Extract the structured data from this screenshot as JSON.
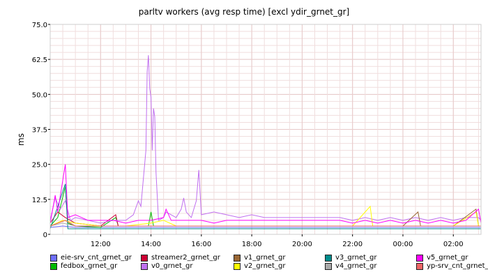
{
  "chart_data": {
    "type": "line",
    "title": "parltv workers (avg resp time) [excl ydir_grnet_gr]",
    "ylabel": "ms",
    "xlabel": "",
    "ylim": [
      0,
      75
    ],
    "yticks": [
      "0",
      "12.5",
      "25.0",
      "37.5",
      "50.0",
      "62.5",
      "75.0"
    ],
    "xticks": [
      "12:00",
      "14:00",
      "16:00",
      "18:00",
      "20:00",
      "22:00",
      "00:00",
      "02:00"
    ],
    "x_range_hours": [
      10.0,
      27.1
    ],
    "grid": true,
    "legend_position": "bottom",
    "series": [
      {
        "name": "eie-srv_cnt_grnet_gr",
        "color": "#6e6eff",
        "points": [
          [
            10.0,
            2.5
          ],
          [
            10.5,
            3
          ],
          [
            11.0,
            2.5
          ],
          [
            12.0,
            2.5
          ],
          [
            13.0,
            2.5
          ],
          [
            14.0,
            2.5
          ],
          [
            15.0,
            2.5
          ],
          [
            16.0,
            2.5
          ],
          [
            17.0,
            2.5
          ],
          [
            18.0,
            2.5
          ],
          [
            19.0,
            2.5
          ],
          [
            20.0,
            2.5
          ],
          [
            21.0,
            2.5
          ],
          [
            22.0,
            2.5
          ],
          [
            23.0,
            2.5
          ],
          [
            24.0,
            2.5
          ],
          [
            25.0,
            2.5
          ],
          [
            26.0,
            2.5
          ],
          [
            27.1,
            2.5
          ]
        ]
      },
      {
        "name": "fedbox_grnet_gr",
        "color": "#00bb00",
        "points": [
          [
            10.0,
            3
          ],
          [
            10.3,
            6
          ],
          [
            10.6,
            17
          ],
          [
            10.7,
            4
          ],
          [
            11.0,
            3
          ],
          [
            12.0,
            2.5
          ],
          [
            12.6,
            6
          ],
          [
            12.7,
            3
          ],
          [
            13.9,
            3
          ],
          [
            14.0,
            8
          ],
          [
            14.1,
            3
          ],
          [
            15.0,
            3
          ],
          [
            16.0,
            3
          ],
          [
            17.0,
            3
          ],
          [
            18.0,
            3
          ],
          [
            19.0,
            3
          ],
          [
            20.0,
            3
          ],
          [
            21.0,
            3
          ],
          [
            22.0,
            3
          ],
          [
            23.0,
            3
          ],
          [
            24.0,
            3
          ],
          [
            25.0,
            3
          ],
          [
            26.0,
            3
          ],
          [
            27.1,
            3
          ]
        ]
      },
      {
        "name": "streamer2_grnet_gr",
        "color": "#cc0033",
        "points": [
          [
            10.0,
            4
          ],
          [
            10.3,
            8
          ],
          [
            10.6,
            6
          ],
          [
            11.0,
            4
          ],
          [
            12.0,
            3
          ],
          [
            12.6,
            7
          ],
          [
            12.7,
            3
          ],
          [
            14.0,
            3
          ],
          [
            15.0,
            3
          ],
          [
            16.0,
            3
          ],
          [
            17.0,
            3
          ],
          [
            18.0,
            3
          ],
          [
            19.0,
            3
          ],
          [
            20.0,
            3
          ],
          [
            21.0,
            3
          ],
          [
            22.0,
            3
          ],
          [
            23.0,
            3
          ],
          [
            24.0,
            3
          ],
          [
            25.0,
            3
          ],
          [
            26.0,
            3
          ],
          [
            27.1,
            3
          ]
        ]
      },
      {
        "name": "v0_grnet_gr",
        "color": "#c070f0",
        "points": [
          [
            10.0,
            5
          ],
          [
            10.2,
            13
          ],
          [
            10.4,
            9
          ],
          [
            10.6,
            12
          ],
          [
            10.8,
            5
          ],
          [
            11.0,
            6
          ],
          [
            11.5,
            5
          ],
          [
            12.0,
            4
          ],
          [
            12.5,
            5
          ],
          [
            13.0,
            5
          ],
          [
            13.3,
            7
          ],
          [
            13.5,
            12
          ],
          [
            13.6,
            10
          ],
          [
            13.8,
            30
          ],
          [
            13.85,
            58
          ],
          [
            13.9,
            64
          ],
          [
            13.95,
            52
          ],
          [
            14.0,
            49
          ],
          [
            14.05,
            30
          ],
          [
            14.1,
            45
          ],
          [
            14.15,
            42
          ],
          [
            14.2,
            22
          ],
          [
            14.3,
            5
          ],
          [
            14.5,
            6
          ],
          [
            14.6,
            8
          ],
          [
            14.8,
            7
          ],
          [
            15.0,
            6
          ],
          [
            15.2,
            9
          ],
          [
            15.3,
            13
          ],
          [
            15.4,
            8
          ],
          [
            15.6,
            6
          ],
          [
            15.8,
            12
          ],
          [
            15.9,
            23
          ],
          [
            16.0,
            7
          ],
          [
            16.5,
            8
          ],
          [
            17.0,
            7
          ],
          [
            17.5,
            6
          ],
          [
            18.0,
            7
          ],
          [
            18.5,
            6
          ],
          [
            19.0,
            6
          ],
          [
            19.5,
            6
          ],
          [
            20.0,
            6
          ],
          [
            20.5,
            6
          ],
          [
            21.0,
            6
          ],
          [
            21.5,
            6
          ],
          [
            22.0,
            5
          ],
          [
            22.5,
            6
          ],
          [
            23.0,
            5
          ],
          [
            23.5,
            6
          ],
          [
            24.0,
            5
          ],
          [
            24.5,
            6
          ],
          [
            25.0,
            5
          ],
          [
            25.5,
            6
          ],
          [
            26.0,
            5
          ],
          [
            26.5,
            6
          ],
          [
            27.0,
            6
          ],
          [
            27.1,
            5
          ]
        ]
      },
      {
        "name": "v1_grnet_gr",
        "color": "#996633",
        "points": [
          [
            10.0,
            3
          ],
          [
            10.6,
            5
          ],
          [
            11.0,
            3
          ],
          [
            12.0,
            3
          ],
          [
            13.0,
            3
          ],
          [
            14.0,
            3
          ],
          [
            15.0,
            3
          ],
          [
            16.0,
            3
          ],
          [
            17.0,
            3
          ],
          [
            18.0,
            3
          ],
          [
            19.0,
            3
          ],
          [
            20.0,
            3
          ],
          [
            21.0,
            3
          ],
          [
            22.0,
            3
          ],
          [
            23.0,
            3
          ],
          [
            24.0,
            3
          ],
          [
            24.6,
            8
          ],
          [
            24.7,
            3
          ],
          [
            25.0,
            3
          ],
          [
            26.0,
            3
          ],
          [
            26.9,
            9
          ],
          [
            27.0,
            3
          ],
          [
            27.1,
            3
          ]
        ]
      },
      {
        "name": "v2_grnet_gr",
        "color": "#ffff00",
        "points": [
          [
            10.0,
            3
          ],
          [
            10.5,
            5
          ],
          [
            11.0,
            4
          ],
          [
            12.0,
            3
          ],
          [
            13.0,
            3
          ],
          [
            14.0,
            4
          ],
          [
            14.5,
            5
          ],
          [
            15.0,
            3
          ],
          [
            16.0,
            3
          ],
          [
            17.0,
            3
          ],
          [
            18.0,
            3
          ],
          [
            19.0,
            3
          ],
          [
            20.0,
            3
          ],
          [
            21.0,
            3
          ],
          [
            22.0,
            3
          ],
          [
            22.7,
            10
          ],
          [
            22.8,
            3
          ],
          [
            23.0,
            3
          ],
          [
            24.0,
            3
          ],
          [
            25.0,
            3
          ],
          [
            26.0,
            3
          ],
          [
            26.9,
            8
          ],
          [
            27.0,
            3
          ],
          [
            27.1,
            3
          ]
        ]
      },
      {
        "name": "v3_grnet_gr",
        "color": "#008b8b",
        "points": [
          [
            10.0,
            2
          ],
          [
            10.6,
            18
          ],
          [
            10.7,
            2
          ],
          [
            11.0,
            2
          ],
          [
            12.0,
            2
          ],
          [
            13.0,
            2
          ],
          [
            14.0,
            2
          ],
          [
            15.0,
            2
          ],
          [
            16.0,
            2
          ],
          [
            17.0,
            2
          ],
          [
            18.0,
            2
          ],
          [
            19.0,
            2
          ],
          [
            20.0,
            2
          ],
          [
            21.0,
            2
          ],
          [
            22.0,
            2
          ],
          [
            23.0,
            2
          ],
          [
            24.0,
            2
          ],
          [
            25.0,
            2
          ],
          [
            26.0,
            2
          ],
          [
            27.1,
            2
          ]
        ]
      },
      {
        "name": "v4_grnet_gr",
        "color": "#aaaaaa",
        "points": [
          [
            10.0,
            3
          ],
          [
            10.5,
            4
          ],
          [
            11.0,
            3
          ],
          [
            12.0,
            3
          ],
          [
            13.0,
            3
          ],
          [
            14.0,
            3
          ],
          [
            15.0,
            3
          ],
          [
            16.0,
            3
          ],
          [
            17.0,
            3
          ],
          [
            18.0,
            3
          ],
          [
            19.0,
            3
          ],
          [
            20.0,
            3
          ],
          [
            21.0,
            3
          ],
          [
            22.0,
            3
          ],
          [
            23.0,
            3
          ],
          [
            24.0,
            3
          ],
          [
            25.0,
            3
          ],
          [
            26.0,
            3
          ],
          [
            27.1,
            3
          ]
        ]
      },
      {
        "name": "v5_grnet_gr",
        "color": "#ff00ff",
        "points": [
          [
            10.0,
            4
          ],
          [
            10.2,
            14
          ],
          [
            10.3,
            8
          ],
          [
            10.6,
            25
          ],
          [
            10.7,
            6
          ],
          [
            11.0,
            7
          ],
          [
            11.5,
            5
          ],
          [
            12.0,
            5
          ],
          [
            12.5,
            5
          ],
          [
            13.0,
            4
          ],
          [
            13.5,
            5
          ],
          [
            14.0,
            5
          ],
          [
            14.5,
            6
          ],
          [
            14.6,
            9
          ],
          [
            14.8,
            5
          ],
          [
            15.0,
            5
          ],
          [
            15.5,
            5
          ],
          [
            16.0,
            5
          ],
          [
            16.5,
            4
          ],
          [
            17.0,
            5
          ],
          [
            17.5,
            5
          ],
          [
            18.0,
            5
          ],
          [
            18.5,
            5
          ],
          [
            19.0,
            5
          ],
          [
            19.5,
            5
          ],
          [
            20.0,
            5
          ],
          [
            20.5,
            5
          ],
          [
            21.0,
            5
          ],
          [
            21.5,
            5
          ],
          [
            22.0,
            4
          ],
          [
            22.5,
            5
          ],
          [
            23.0,
            4
          ],
          [
            23.5,
            5
          ],
          [
            24.0,
            4
          ],
          [
            24.5,
            5
          ],
          [
            25.0,
            4
          ],
          [
            25.5,
            5
          ],
          [
            26.0,
            4
          ],
          [
            26.5,
            5
          ],
          [
            27.0,
            9
          ],
          [
            27.1,
            4
          ]
        ]
      },
      {
        "name": "yp-srv_cnt_grnet_gr",
        "color": "#ee6666",
        "points": [
          [
            10.0,
            3
          ],
          [
            10.6,
            5
          ],
          [
            11.0,
            3
          ],
          [
            12.0,
            3
          ],
          [
            13.0,
            3
          ],
          [
            14.0,
            3
          ],
          [
            15.0,
            3
          ],
          [
            16.0,
            3
          ],
          [
            17.0,
            3
          ],
          [
            18.0,
            3
          ],
          [
            19.0,
            3
          ],
          [
            20.0,
            3
          ],
          [
            21.0,
            3
          ],
          [
            22.0,
            3
          ],
          [
            23.0,
            3
          ],
          [
            24.0,
            3
          ],
          [
            25.0,
            3
          ],
          [
            26.0,
            3
          ],
          [
            27.1,
            3
          ]
        ]
      }
    ]
  }
}
